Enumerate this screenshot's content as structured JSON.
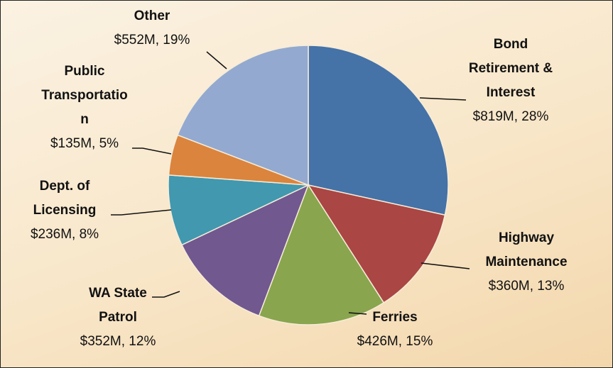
{
  "chart_data": {
    "type": "pie",
    "categories": [
      "Bond Retirement & Interest",
      "Highway Maintenance",
      "Ferries",
      "WA State Patrol",
      "Dept. of Licensing",
      "Public Transportation",
      "Other"
    ],
    "values": [
      819,
      360,
      426,
      352,
      236,
      135,
      552
    ],
    "value_labels": [
      "$819M, 28%",
      "$360M, 13%",
      "$426M, 15%",
      "$352M, 12%",
      "$236M, 8%",
      "$135M, 5%",
      "$552M, 19%"
    ],
    "colors": [
      "#4572a7",
      "#aa4643",
      "#89a54e",
      "#71588f",
      "#4198af",
      "#db843d",
      "#93a9cf"
    ]
  }
}
